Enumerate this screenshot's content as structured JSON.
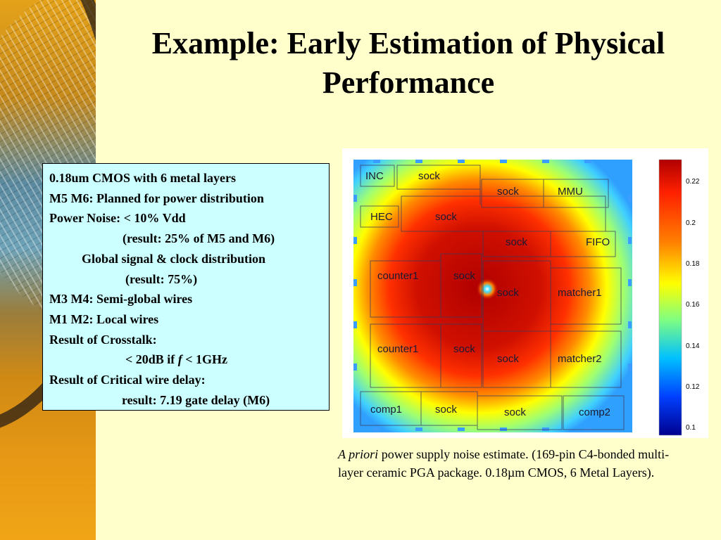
{
  "slide": {
    "title": "Example: Early Estimation of Physical Performance",
    "background_color": "#ffffcc",
    "box_color": "#ccffff"
  },
  "info_box": {
    "lines": [
      "0.18um CMOS with 6 metal layers",
      "M5 M6: Planned for power distribution",
      "Power Noise:  < 10% Vdd",
      "(result: 25% of M5 and M6)",
      "Global signal & clock distribution",
      "(result: 75%)",
      "M3 M4: Semi-global wires",
      "M1 M2: Local wires",
      "Result of Crosstalk:",
      "< 20dB if ",
      "f",
      " < 1GHz",
      "Result of Critical wire delay:",
      "result: 7.19 gate delay (M6)"
    ]
  },
  "noise_map": {
    "blocks": [
      "INC",
      "sock",
      "sock",
      "MMU",
      "HEC",
      "sock",
      "sock",
      "FIFO",
      "counter1",
      "sock",
      "sock",
      "matcher1",
      "counter1",
      "sock",
      "sock",
      "matcher2",
      "comp1",
      "sock",
      "sock",
      "comp2"
    ],
    "colorbar_ticks": [
      "0.22",
      "0.2",
      "0.18",
      "0.16",
      "0.14",
      "0.12",
      "0.1"
    ],
    "colorbar_colors": [
      "#b00000",
      "#ff2000",
      "#ff8000",
      "#ffff00",
      "#80ff80",
      "#00c0ff",
      "#0040ff",
      "#00008f"
    ]
  },
  "caption": {
    "italic": "A priori",
    "text": " power supply noise estimate. (169-pin C4-bonded multi-layer ceramic PGA package. 0.18µm CMOS, 6 Metal Layers)."
  }
}
